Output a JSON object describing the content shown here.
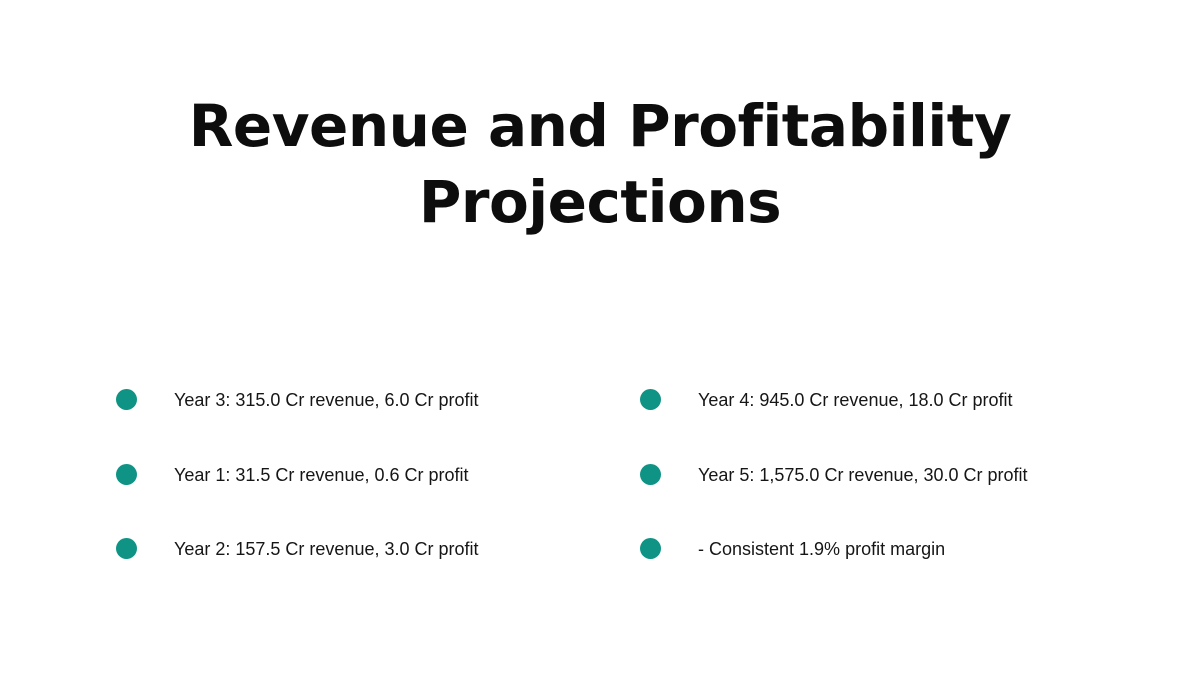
{
  "slide": {
    "title": "Revenue and Profitability Projections",
    "accent_color": "#0f9384",
    "bullets_left": [
      {
        "text": "Year 3: 315.0 Cr revenue, 6.0 Cr profit"
      },
      {
        "text": "Year 1: 31.5 Cr revenue, 0.6 Cr profit"
      },
      {
        "text": "Year 2: 157.5 Cr revenue, 3.0 Cr profit"
      }
    ],
    "bullets_right": [
      {
        "text": "Year 4: 945.0 Cr revenue, 18.0 Cr profit"
      },
      {
        "text": "Year 5: 1,575.0 Cr revenue, 30.0 Cr profit"
      },
      {
        "text": "- Consistent 1.9% profit margin"
      }
    ]
  }
}
